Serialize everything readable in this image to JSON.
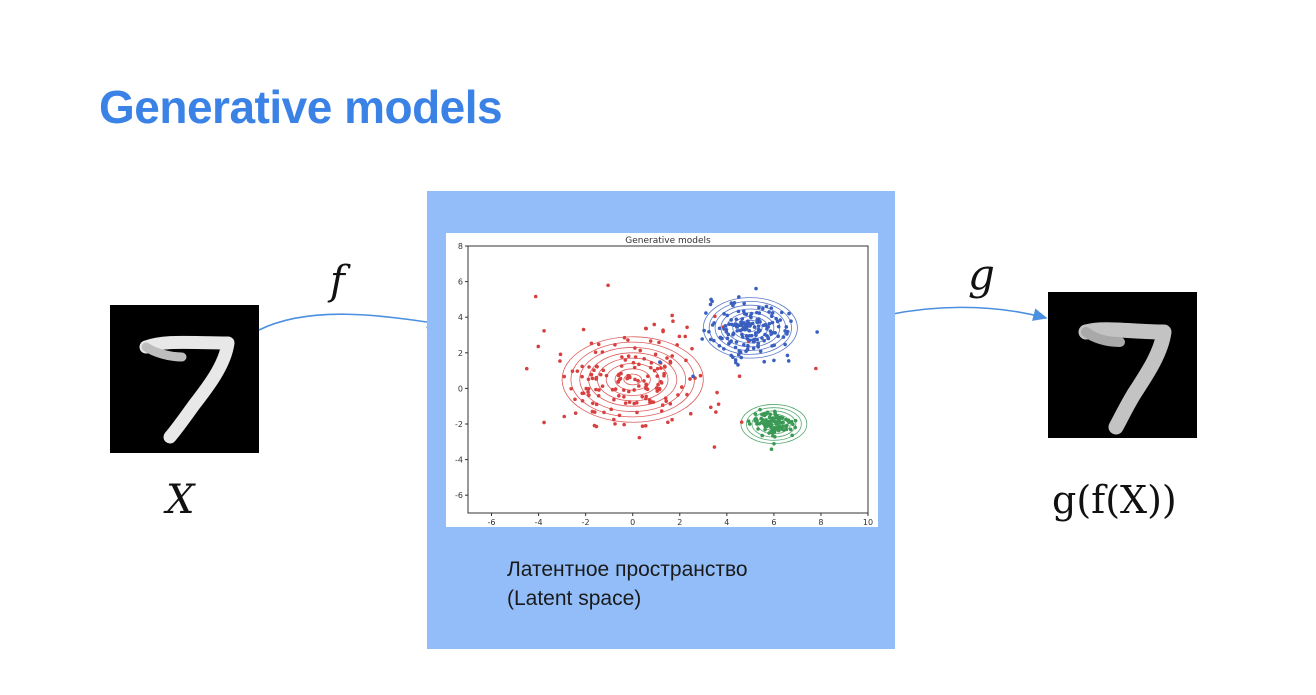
{
  "slide": {
    "title": "Generative models",
    "accent_color": "#3b82e6",
    "panel_color": "#92bdf9"
  },
  "labels": {
    "encoder": "f",
    "decoder": "g",
    "input": "X",
    "output": "g(f(X))"
  },
  "caption": {
    "line1": "Латентное пространство",
    "line2": "(Latent space)"
  },
  "input_image": {
    "digit": "7"
  },
  "output_image": {
    "digit": "7"
  },
  "chart_data": {
    "type": "scatter",
    "title": "Generative models",
    "xlim": [
      -7,
      10
    ],
    "ylim": [
      -7,
      8
    ],
    "x_ticks": [
      -6,
      -4,
      -2,
      0,
      2,
      4,
      6,
      8,
      10
    ],
    "y_ticks": [
      -6,
      -4,
      -2,
      0,
      2,
      4,
      6,
      8
    ],
    "grid": false,
    "series": [
      {
        "color": "#d84040",
        "center": [
          0,
          0.5
        ],
        "spread": [
          2.0,
          1.6
        ],
        "count": 180
      },
      {
        "color": "#3a5fbf",
        "center": [
          5,
          3.3
        ],
        "spread": [
          0.9,
          0.75
        ],
        "count": 170
      },
      {
        "color": "#3a9a55",
        "center": [
          6,
          -2
        ],
        "spread": [
          0.45,
          0.35
        ],
        "count": 110
      }
    ],
    "contours": [
      {
        "color": "#d84040",
        "center": [
          0,
          0.5
        ],
        "radii": [
          3.0,
          2.4
        ],
        "levels": 8
      },
      {
        "color": "#3a5fbf",
        "center": [
          5,
          3.4
        ],
        "radii": [
          2.0,
          1.7
        ],
        "levels": 8
      },
      {
        "color": "#3a9a55",
        "center": [
          6,
          -2
        ],
        "radii": [
          1.4,
          1.1
        ],
        "levels": 6
      }
    ]
  }
}
